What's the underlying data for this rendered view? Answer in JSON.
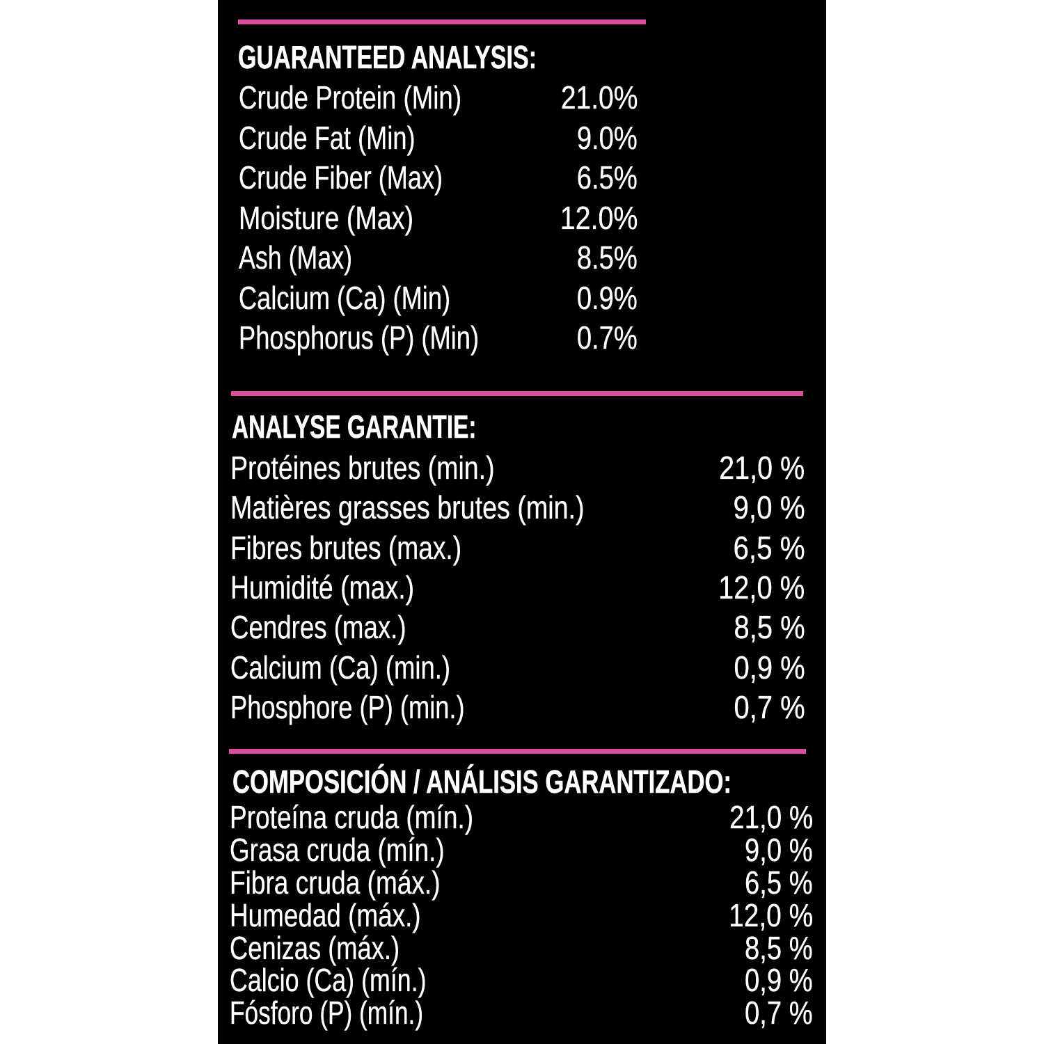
{
  "label_panel": {
    "page_background_color": "#ffffff",
    "panel_background_color": "#000000",
    "text_color": "#ffffff",
    "divider_color": "#dc4d9b",
    "sections": [
      {
        "heading": "GUARANTEED ANALYSIS:",
        "rows": [
          {
            "label": "Crude Protein (Min)",
            "value": "21.0%"
          },
          {
            "label": "Crude Fat (Min)",
            "value": "9.0%"
          },
          {
            "label": "Crude Fiber (Max)",
            "value": "6.5%"
          },
          {
            "label": "Moisture (Max)",
            "value": "12.0%"
          },
          {
            "label": "Ash (Max)",
            "value": "8.5%"
          },
          {
            "label": "Calcium (Ca) (Min)",
            "value": "0.9%"
          },
          {
            "label": "Phosphorus (P) (Min)",
            "value": "0.7%"
          }
        ]
      },
      {
        "heading": "ANALYSE GARANTIE:",
        "rows": [
          {
            "label": "Protéines brutes (min.)",
            "value": "21,0 %"
          },
          {
            "label": "Matières grasses brutes (min.)",
            "value": "9,0 %"
          },
          {
            "label": "Fibres brutes (max.)",
            "value": "6,5 %"
          },
          {
            "label": "Humidité (max.)",
            "value": "12,0 %"
          },
          {
            "label": "Cendres (max.)",
            "value": "8,5 %"
          },
          {
            "label": "Calcium (Ca) (min.)",
            "value": "0,9 %"
          },
          {
            "label": "Phosphore (P) (min.)",
            "value": "0,7 %"
          }
        ]
      },
      {
        "heading": "COMPOSICIÓN / ANÁLISIS GARANTIZADO:",
        "rows": [
          {
            "label": "Proteína cruda (mín.)",
            "value": "21,0 %"
          },
          {
            "label": "Grasa cruda (mín.)",
            "value": "9,0 %"
          },
          {
            "label": "Fibra cruda (máx.)",
            "value": "6,5 %"
          },
          {
            "label": "Humedad (máx.)",
            "value": "12,0 %"
          },
          {
            "label": "Cenizas (máx.)",
            "value": "8,5 %"
          },
          {
            "label": "Calcio (Ca) (mín.)",
            "value": "0,9 %"
          },
          {
            "label": "Fósforo (P) (mín.)",
            "value": "0,7 %"
          }
        ]
      }
    ]
  }
}
